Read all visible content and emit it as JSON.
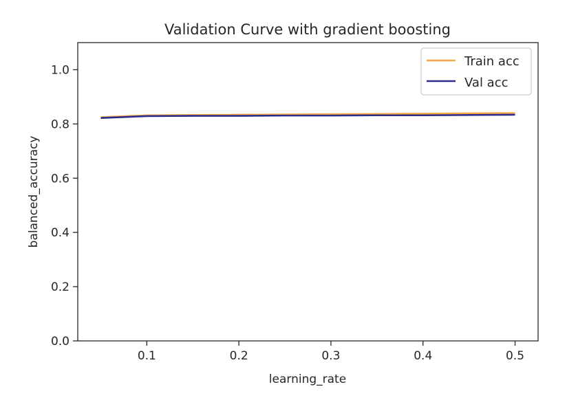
{
  "chart_data": {
    "type": "line",
    "title": "Validation Curve with gradient boosting",
    "xlabel": "learning_rate",
    "ylabel": "balanced_accuracy",
    "xlim": [
      0.025,
      0.525
    ],
    "ylim": [
      0.0,
      1.1
    ],
    "xticks": [
      0.1,
      0.2,
      0.3,
      0.4,
      0.5
    ],
    "xtick_labels": [
      "0.1",
      "0.2",
      "0.3",
      "0.4",
      "0.5"
    ],
    "yticks": [
      0.0,
      0.2,
      0.4,
      0.6,
      0.8,
      1.0
    ],
    "ytick_labels": [
      "0.0",
      "0.2",
      "0.4",
      "0.6",
      "0.8",
      "1.0"
    ],
    "grid": false,
    "legend_position": "top-right",
    "x": [
      0.05,
      0.1,
      0.15,
      0.2,
      0.25,
      0.3,
      0.35,
      0.4,
      0.45,
      0.5
    ],
    "series": [
      {
        "name": "Train acc",
        "color": "#f5a742",
        "values": [
          0.825,
          0.832,
          0.833,
          0.834,
          0.835,
          0.836,
          0.837,
          0.838,
          0.839,
          0.84
        ]
      },
      {
        "name": "Val acc",
        "color": "#2b2d8e",
        "values": [
          0.822,
          0.829,
          0.83,
          0.83,
          0.831,
          0.831,
          0.832,
          0.832,
          0.833,
          0.834
        ]
      }
    ]
  }
}
